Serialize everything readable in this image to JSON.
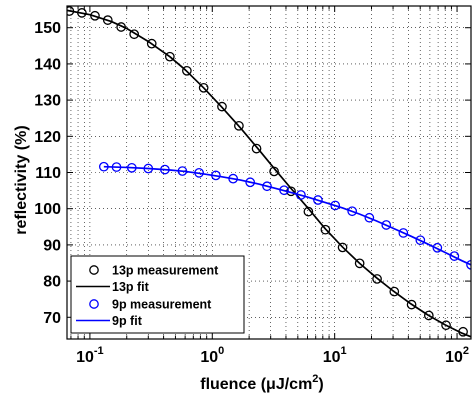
{
  "chart_data": {
    "type": "scatter",
    "xlabel": "fluence (μJ/cm²)",
    "xlabel_main": "fluence (",
    "xlabel_mu": "μ",
    "xlabel_unit": "J/cm",
    "xlabel_sup": "2",
    "xlabel_close": ")",
    "ylabel": "reflectivity (%)",
    "xscale": "log",
    "xlim": [
      0.065,
      130
    ],
    "ylim": [
      64,
      156
    ],
    "yticks": [
      70,
      80,
      90,
      100,
      110,
      120,
      130,
      140,
      150
    ],
    "ytick_labels": [
      "70",
      "80",
      "90",
      "100",
      "110",
      "120",
      "130",
      "140",
      "150"
    ],
    "xticks": [
      0.1,
      1,
      10,
      100
    ],
    "xtick_labels": [
      {
        "base": "10",
        "exp": "-1"
      },
      {
        "base": "10",
        "exp": "0"
      },
      {
        "base": "10",
        "exp": "1"
      },
      {
        "base": "10",
        "exp": "2"
      }
    ],
    "grid": "dotted",
    "legend_position": "bottom-left",
    "series": [
      {
        "name": "13p measurement",
        "kind": "markers",
        "color": "#000000",
        "x": [
          0.068,
          0.086,
          0.11,
          0.14,
          0.18,
          0.23,
          0.32,
          0.45,
          0.62,
          0.85,
          1.2,
          1.65,
          2.3,
          3.2,
          4.4,
          6.1,
          8.4,
          11.6,
          16,
          22.2,
          30.7,
          42.5,
          58.8,
          81.3,
          112
        ],
        "y": [
          154.6,
          154.1,
          153.3,
          152.1,
          150.2,
          148.2,
          145.6,
          142.0,
          138.1,
          133.4,
          128.2,
          122.9,
          116.6,
          110.3,
          104.8,
          99.2,
          94.2,
          89.3,
          84.9,
          80.6,
          77.1,
          73.5,
          70.5,
          67.8,
          66.0
        ]
      },
      {
        "name": "13p fit",
        "kind": "line",
        "color": "#000000",
        "x": [
          0.065,
          0.1,
          0.15,
          0.2,
          0.3,
          0.45,
          0.6,
          0.85,
          1.2,
          1.7,
          2.4,
          3.3,
          4.5,
          6,
          8.4,
          11.6,
          16,
          22,
          30,
          42,
          58,
          80,
          110,
          130
        ],
        "y": [
          154.8,
          153.6,
          151.7,
          149.8,
          146.2,
          142.0,
          138.4,
          133.4,
          128.0,
          122.3,
          116.3,
          110.6,
          105.2,
          100.3,
          94.4,
          89.4,
          84.9,
          80.9,
          77.3,
          73.7,
          70.6,
          67.9,
          65.6,
          64.6
        ]
      },
      {
        "name": "9p measurement",
        "kind": "markers",
        "color": "#0000ff",
        "x": [
          0.13,
          0.165,
          0.22,
          0.3,
          0.41,
          0.57,
          0.78,
          1.07,
          1.48,
          2.04,
          2.8,
          3.86,
          5.3,
          7.3,
          10.1,
          13.9,
          19.2,
          26.4,
          36.4,
          50.1,
          69,
          95,
          130
        ],
        "y": [
          111.6,
          111.5,
          111.3,
          111.1,
          110.8,
          110.4,
          109.9,
          109.2,
          108.3,
          107.3,
          106.2,
          105.1,
          103.8,
          102.4,
          100.9,
          99.3,
          97.5,
          95.5,
          93.3,
          91.3,
          89.2,
          86.9,
          84.5
        ]
      },
      {
        "name": "9p fit",
        "kind": "line",
        "color": "#0000ff",
        "x": [
          0.13,
          0.2,
          0.3,
          0.45,
          0.6,
          0.85,
          1.2,
          1.7,
          2.4,
          3.3,
          4.5,
          6,
          8.4,
          11.6,
          16,
          22,
          30,
          42,
          58,
          80,
          110,
          130
        ],
        "y": [
          111.6,
          111.4,
          111.1,
          110.7,
          110.3,
          109.6,
          108.8,
          107.9,
          106.8,
          105.6,
          104.4,
          103.2,
          101.7,
          100.2,
          98.5,
          96.6,
          94.6,
          92.4,
          90.2,
          87.9,
          85.6,
          84.5
        ]
      }
    ]
  }
}
